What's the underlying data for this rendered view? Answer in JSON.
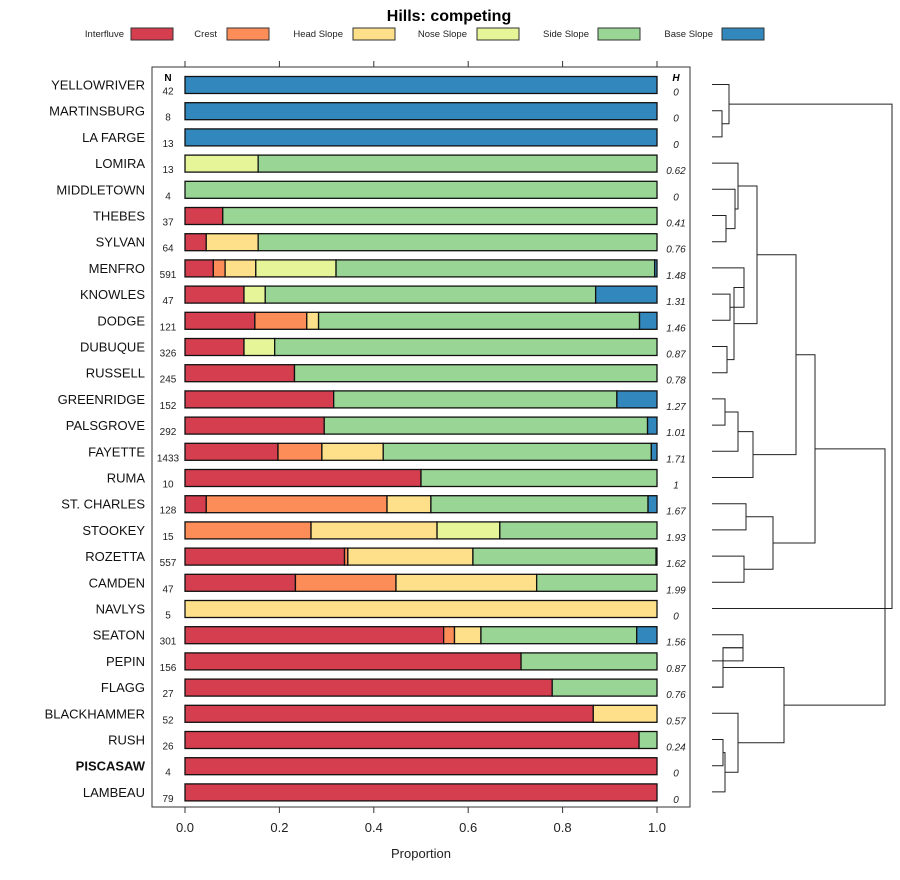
{
  "chart_data": {
    "type": "bar",
    "orientation": "horizontal",
    "stacked": true,
    "title": "Hills: competing",
    "xlabel": "Proportion",
    "ylabel": "",
    "xlim": [
      0,
      1
    ],
    "xticks": [
      "0.0",
      "0.2",
      "0.4",
      "0.6",
      "0.8",
      "1.0"
    ],
    "xtick_values": [
      0,
      0.2,
      0.4,
      0.6,
      0.8,
      1.0
    ],
    "grid": false,
    "legend_position": "top",
    "n_header": "N",
    "h_header": "H",
    "legend": [
      {
        "name": "Interfluve",
        "color": "#D53E4F"
      },
      {
        "name": "Crest",
        "color": "#FC8D59"
      },
      {
        "name": "Head Slope",
        "color": "#FEE08B"
      },
      {
        "name": "Nose Slope",
        "color": "#E6F598"
      },
      {
        "name": "Side Slope",
        "color": "#99D594"
      },
      {
        "name": "Base Slope",
        "color": "#3288BD"
      }
    ],
    "categories": [
      "YELLOWRIVER",
      "MARTINSBURG",
      "LA FARGE",
      "LOMIRA",
      "MIDDLETOWN",
      "THEBES",
      "SYLVAN",
      "MENFRO",
      "KNOWLES",
      "DODGE",
      "DUBUQUE",
      "RUSSELL",
      "GREENRIDGE",
      "PALSGROVE",
      "FAYETTE",
      "RUMA",
      "ST. CHARLES",
      "STOOKEY",
      "ROZETTA",
      "CAMDEN",
      "NAVLYS",
      "SEATON",
      "PEPIN",
      "FLAGG",
      "BLACKHAMMER",
      "RUSH",
      "PISCASAW",
      "LAMBEAU"
    ],
    "highlighted": "PISCASAW",
    "n": [
      42,
      8,
      13,
      13,
      4,
      37,
      64,
      591,
      47,
      121,
      326,
      245,
      152,
      292,
      1433,
      10,
      128,
      15,
      557,
      47,
      5,
      301,
      156,
      27,
      52,
      26,
      4,
      79
    ],
    "h": [
      "0",
      "0",
      "0",
      "0.62",
      "0",
      "0.41",
      "0.76",
      "1.48",
      "1.31",
      "1.46",
      "0.87",
      "0.78",
      "1.27",
      "1.01",
      "1.71",
      "1",
      "1.67",
      "1.93",
      "1.62",
      "1.99",
      "0",
      "1.56",
      "0.87",
      "0.76",
      "0.57",
      "0.24",
      "0",
      "0"
    ],
    "series": [
      {
        "name": "Interfluve",
        "values": [
          0,
          0,
          0,
          0,
          0,
          0.08,
          0.045,
          0.06,
          0.125,
          0.148,
          0.125,
          0.232,
          0.315,
          0.295,
          0.197,
          0.5,
          0.045,
          0,
          0.338,
          0.234,
          0,
          0.548,
          0.712,
          0.778,
          0.865,
          0.962,
          1.0,
          1.0
        ]
      },
      {
        "name": "Crest",
        "values": [
          0,
          0,
          0,
          0,
          0,
          0,
          0,
          0.025,
          0,
          0.11,
          0,
          0,
          0,
          0,
          0.093,
          0,
          0.383,
          0.267,
          0.007,
          0.213,
          0,
          0.023,
          0,
          0,
          0,
          0,
          0,
          0
        ]
      },
      {
        "name": "Head Slope",
        "values": [
          0,
          0,
          0,
          0,
          0,
          0,
          0.11,
          0.065,
          0,
          0.025,
          0,
          0,
          0,
          0,
          0.13,
          0,
          0.093,
          0.267,
          0.265,
          0.298,
          1.0,
          0.056,
          0,
          0,
          0.135,
          0,
          0,
          0
        ]
      },
      {
        "name": "Nose Slope",
        "values": [
          0,
          0,
          0,
          0.155,
          0,
          0,
          0,
          0.17,
          0.045,
          0,
          0.065,
          0,
          0,
          0,
          0,
          0,
          0,
          0.133,
          0,
          0,
          0,
          0,
          0,
          0,
          0,
          0,
          0,
          0
        ]
      },
      {
        "name": "Side Slope",
        "values": [
          0,
          0,
          0,
          0.845,
          1.0,
          0.92,
          0.845,
          0.675,
          0.7,
          0.68,
          0.81,
          0.768,
          0.6,
          0.685,
          0.568,
          0.5,
          0.46,
          0.333,
          0.388,
          0.255,
          0,
          0.33,
          0.288,
          0.222,
          0,
          0.038,
          0,
          0
        ]
      },
      {
        "name": "Base Slope",
        "values": [
          1.0,
          1.0,
          1.0,
          0,
          0,
          0,
          0,
          0.005,
          0.13,
          0.037,
          0,
          0,
          0.085,
          0.02,
          0.012,
          0,
          0.019,
          0,
          0.002,
          0,
          0,
          0.043,
          0,
          0,
          0,
          0,
          0,
          0
        ]
      }
    ],
    "dendrogram": {
      "description": "hierarchical clustering of row categories shown at right",
      "merges": [
        [
          [
            "MARTINSBURG",
            "LA FARGE"
          ],
          0.05
        ],
        [
          [
            "YELLOWRIVER",
            [
              "MARTINSBURG",
              "LA FARGE"
            ]
          ],
          0.1
        ],
        [
          [
            "THEBES",
            "SYLVAN"
          ],
          0.1
        ],
        [
          [
            "MIDDLETOWN",
            [
              "THEBES",
              "SYLVAN"
            ]
          ],
          0.13
        ],
        [
          [
            "LOMIRA",
            [
              "MIDDLETOWN",
              "THEBES",
              "SYLVAN"
            ]
          ],
          0.15
        ],
        [
          [
            "KNOWLES",
            "DODGE"
          ],
          0.1
        ],
        [
          [
            "MENFRO",
            [
              "KNOWLES",
              "DODGE"
            ]
          ],
          0.19
        ],
        [
          [
            "DUBUQUE",
            "RUSSELL"
          ],
          0.08
        ],
        [
          [
            "DUBUQUE_RUSSELL",
            "MENFRO_GROUP"
          ],
          0.13
        ],
        [
          [
            "LOMIRA_GROUP",
            "MENFRO_GROUP"
          ],
          0.25
        ],
        [
          [
            "GREENRIDGE",
            "PALSGROVE"
          ],
          0.08
        ],
        [
          [
            "FAYETTE",
            [
              "GREENRIDGE",
              "PALSGROVE"
            ]
          ],
          0.16
        ],
        [
          [
            "RUMA",
            [
              "FAYETTE",
              "GREENRIDGE",
              "PALSGROVE"
            ]
          ],
          0.25
        ],
        [
          [
            "UPPER_GREEN",
            "RUMA_GROUP"
          ],
          0.49
        ],
        [
          [
            "ST. CHARLES",
            "STOOKEY"
          ],
          0.21
        ],
        [
          [
            "ROZETTA",
            "CAMDEN"
          ],
          0.19
        ],
        [
          [
            "STCHARLES_GROUP",
            "ROZETTA_GROUP"
          ],
          0.36
        ],
        [
          [
            "UPPER",
            "MID"
          ],
          0.61
        ],
        [
          [
            "SEATON",
            "PEPIN"
          ],
          0.07
        ],
        [
          [
            "SEATON_PEPIN",
            "FLAGG"
          ],
          0.06
        ],
        [
          [
            "RUSH",
            "PISCASAW"
          ],
          0.05
        ],
        [
          [
            "BLACKHAMMER",
            [
              "RUSH",
              "PISCASAW",
              "LAMBEAU"
            ]
          ],
          0.16
        ],
        [
          [
            "SEATON_GROUP",
            "BLACKHAMMER_GROUP"
          ],
          0.44
        ],
        [
          [
            "NAVLYS",
            "LOWER"
          ],
          1.0
        ],
        [
          [
            "BASE_GROUP",
            "REST"
          ],
          1.05
        ]
      ]
    }
  }
}
